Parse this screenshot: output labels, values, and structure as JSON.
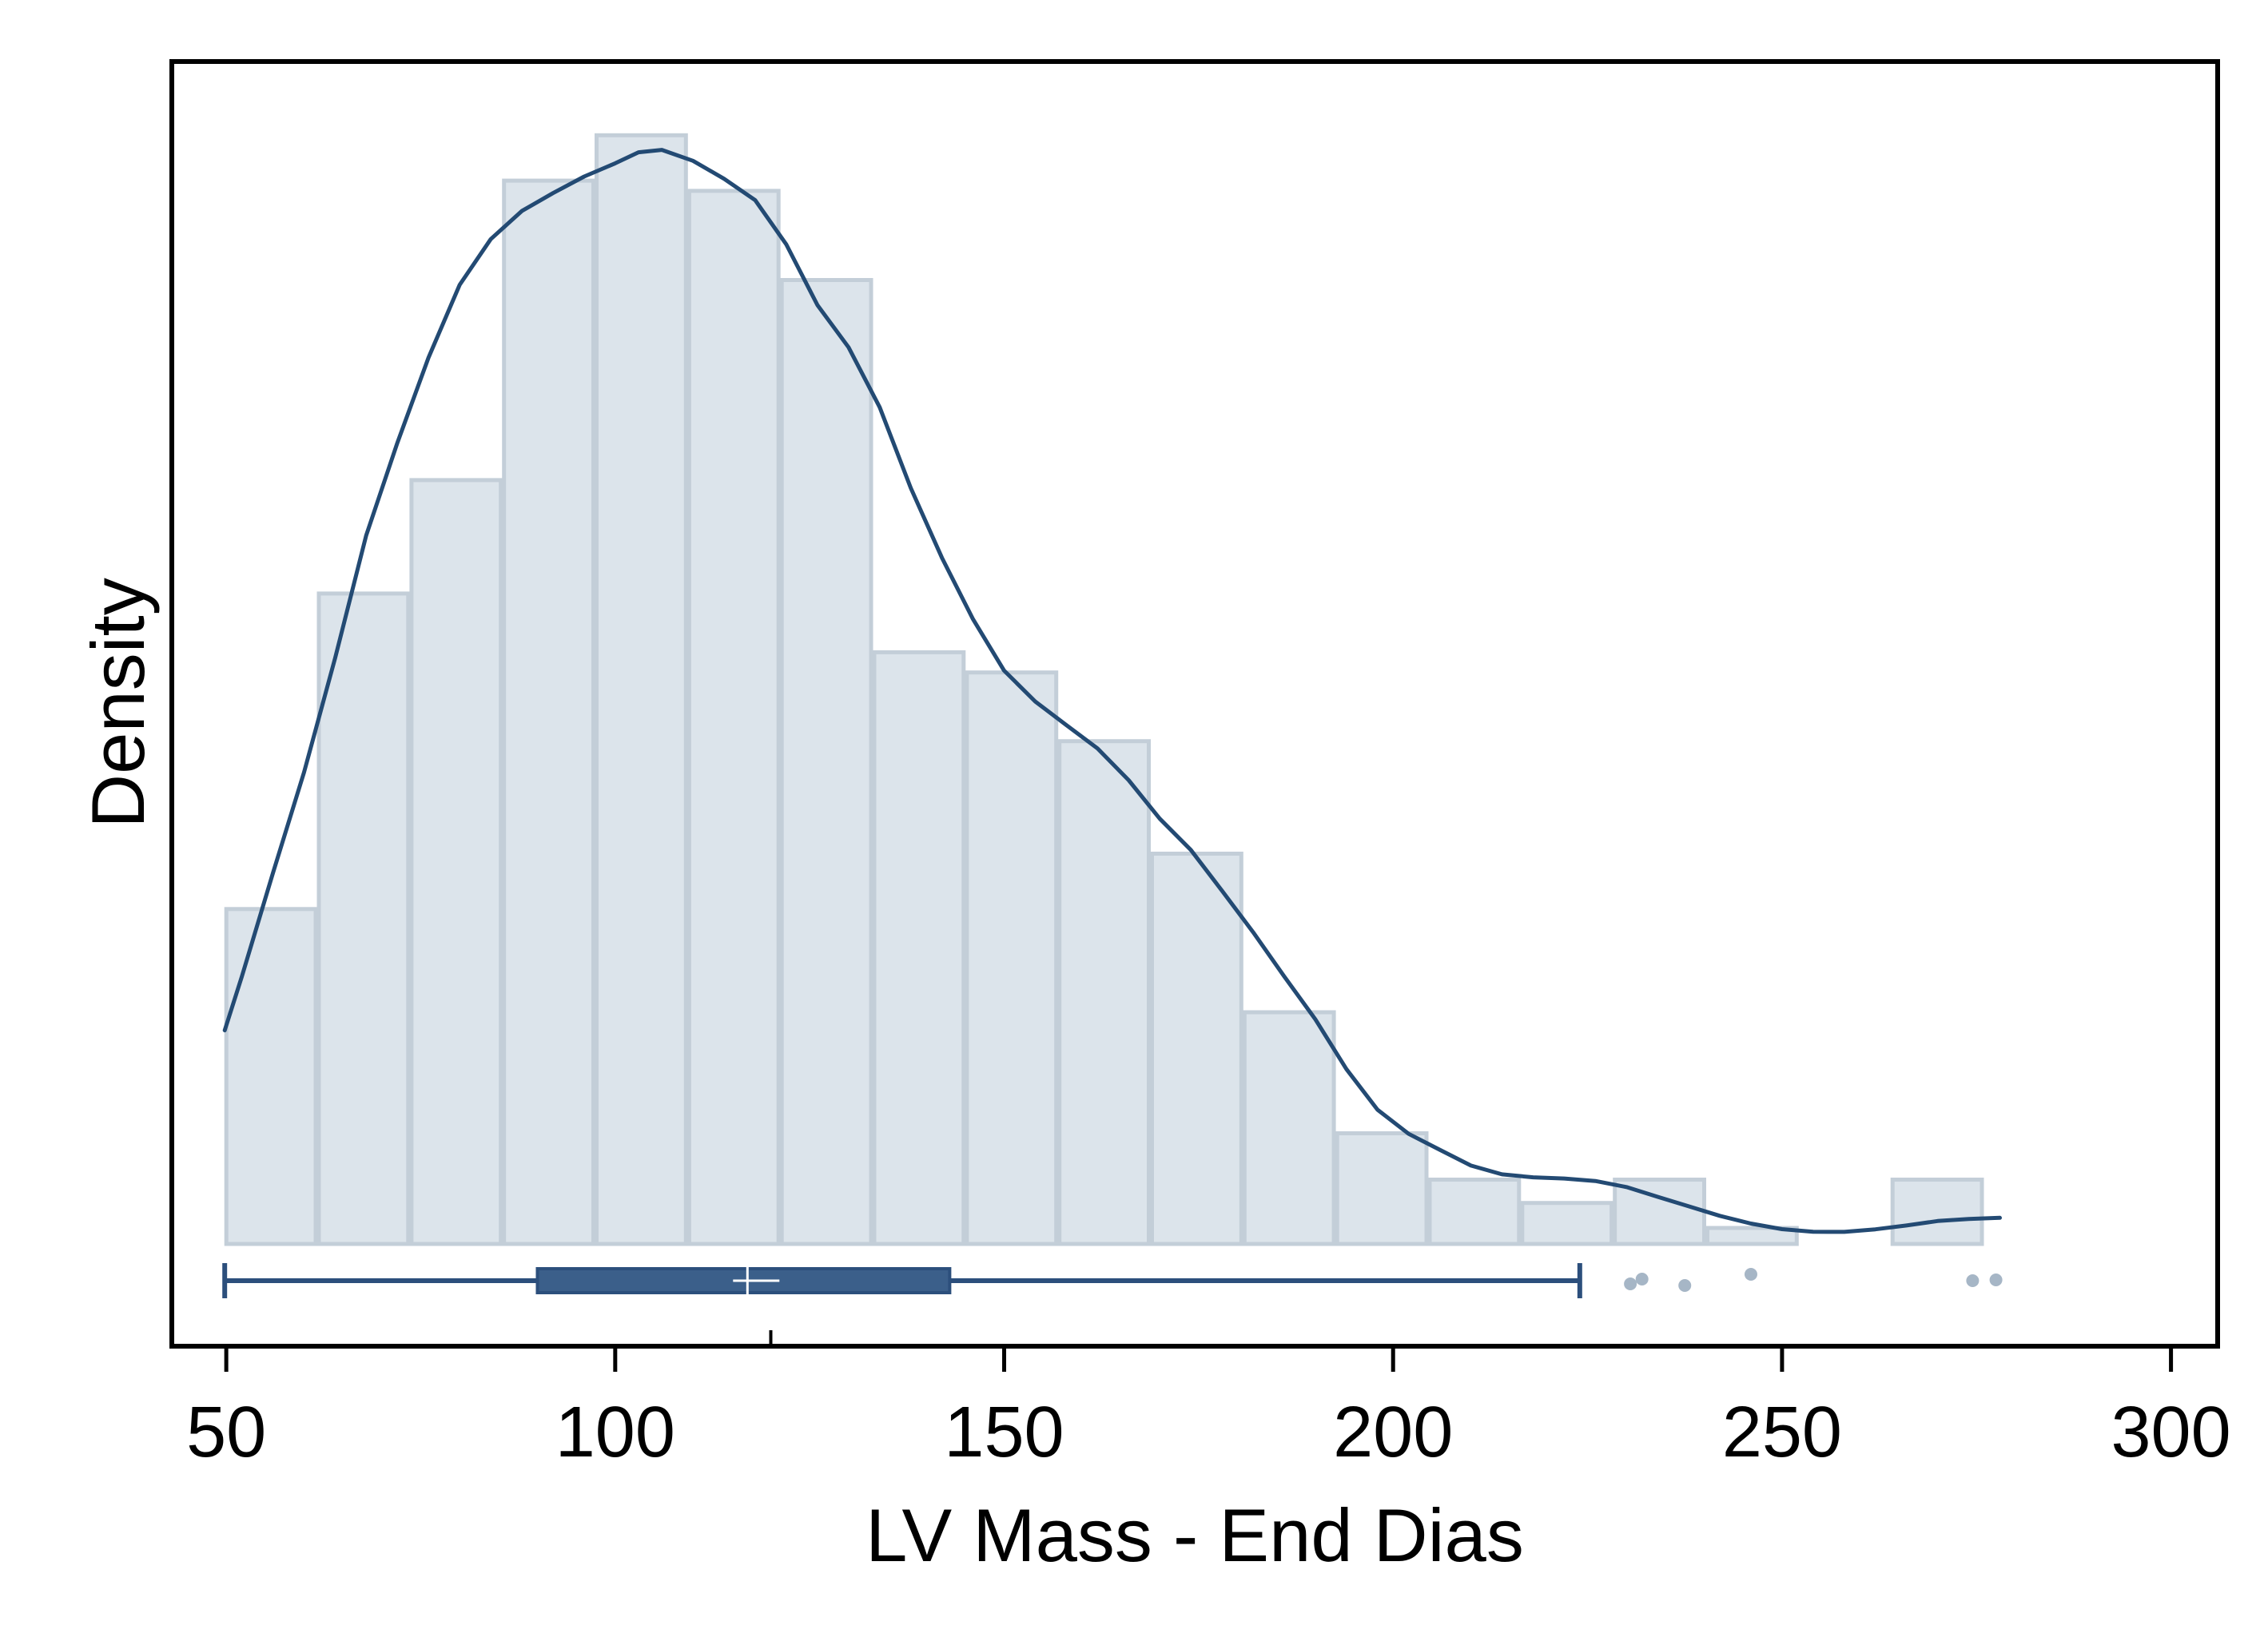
{
  "chart_data": {
    "type": "histogram",
    "xlabel": "LV Mass - End Dias",
    "ylabel": "Density",
    "xlim": [
      43,
      306
    ],
    "x_ticks": [
      50,
      100,
      150,
      200,
      250,
      300
    ],
    "y_tick_labels_shown": false,
    "grid": false,
    "histogram": {
      "bin_edges": [
        49.8,
        61.7,
        73.6,
        85.5,
        97.4,
        109.3,
        121.2,
        133.1,
        145.0,
        156.9,
        168.8,
        180.7,
        192.6,
        204.5,
        216.4,
        228.3,
        240.2,
        252.1,
        264.0,
        275.9,
        287.8
      ],
      "relative_heights": [
        0.2975,
        0.5778,
        0.6786,
        0.9446,
        0.9849,
        0.9355,
        0.8563,
        0.5256,
        0.5077,
        0.4466,
        0.3467,
        0.2058,
        0.0983,
        0.0571,
        0.0364,
        0.0571,
        0.0142,
        0.0,
        0.0571,
        0.0
      ],
      "fill_color": "#dce4eb",
      "edge_color": "#c3ced8"
    },
    "density_curve": {
      "color": "#234a73",
      "x": [
        49.8,
        52,
        56,
        60,
        64,
        68,
        72,
        76,
        80,
        84,
        88,
        92,
        96,
        100,
        103,
        106,
        110,
        114,
        118,
        122,
        126,
        130,
        134,
        138,
        142,
        146,
        150,
        154,
        158,
        162,
        166,
        170,
        174,
        178,
        182,
        186,
        190,
        194,
        198,
        202,
        206,
        210,
        214,
        218,
        222,
        226,
        230,
        234,
        238,
        242,
        246,
        250,
        254,
        258,
        262,
        266,
        270,
        274,
        278
      ],
      "relative_y": [
        0.1898,
        0.2375,
        0.3294,
        0.4191,
        0.5206,
        0.6296,
        0.7118,
        0.7874,
        0.852,
        0.8926,
        0.9176,
        0.9335,
        0.9482,
        0.96,
        0.9698,
        0.9719,
        0.9622,
        0.9462,
        0.9272,
        0.8878,
        0.834,
        0.7965,
        0.7432,
        0.6715,
        0.6095,
        0.5549,
        0.5093,
        0.4818,
        0.4609,
        0.4402,
        0.412,
        0.3778,
        0.35,
        0.3138,
        0.277,
        0.2377,
        0.1996,
        0.1553,
        0.1192,
        0.0978,
        0.0837,
        0.0696,
        0.0618,
        0.0592,
        0.0581,
        0.0559,
        0.0505,
        0.0419,
        0.0334,
        0.025,
        0.0181,
        0.0131,
        0.0108,
        0.0107,
        0.013,
        0.0164,
        0.0204,
        0.0222,
        0.0232
      ]
    },
    "boxplot": {
      "whisker_low": 49.8,
      "q1": 90,
      "median": 117,
      "mean": 120,
      "q3": 143,
      "whisker_high": 224,
      "outliers": [
        230.5,
        232,
        237.5,
        246,
        274.5,
        277.5
      ],
      "color": "#2c4f7c",
      "outlier_color": "#a6b6c6"
    }
  }
}
